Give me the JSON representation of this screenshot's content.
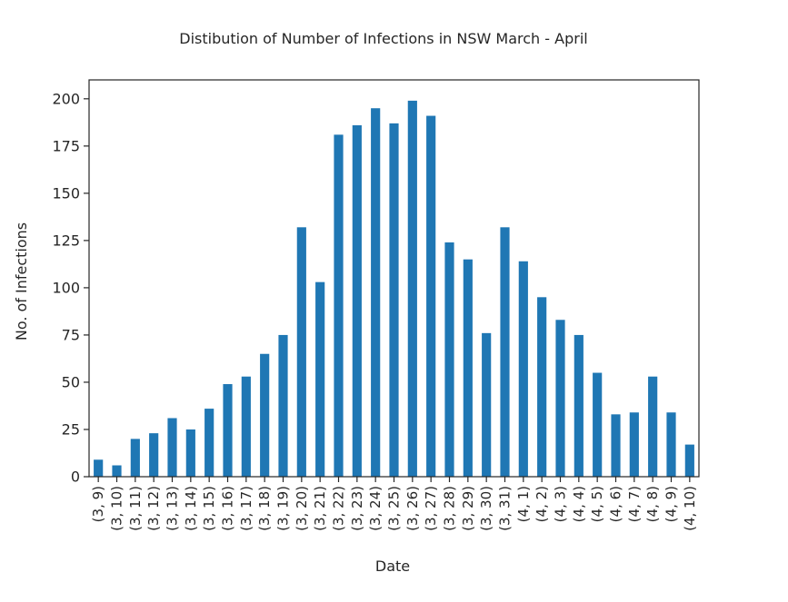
{
  "chart_data": {
    "type": "bar",
    "title": "Distibution of Number of Infections in NSW March - April",
    "xlabel": "Date",
    "ylabel": "No. of Infections",
    "ylim": [
      0,
      210
    ],
    "yticks": [
      0,
      25,
      50,
      75,
      100,
      125,
      150,
      175,
      200
    ],
    "grid": false,
    "legend": "none",
    "bar_color": "#1f77b4",
    "categories": [
      "(3, 9)",
      "(3, 10)",
      "(3, 11)",
      "(3, 12)",
      "(3, 13)",
      "(3, 14)",
      "(3, 15)",
      "(3, 16)",
      "(3, 17)",
      "(3, 18)",
      "(3, 19)",
      "(3, 20)",
      "(3, 21)",
      "(3, 22)",
      "(3, 23)",
      "(3, 24)",
      "(3, 25)",
      "(3, 26)",
      "(3, 27)",
      "(3, 28)",
      "(3, 29)",
      "(3, 30)",
      "(3, 31)",
      "(4, 1)",
      "(4, 2)",
      "(4, 3)",
      "(4, 4)",
      "(4, 5)",
      "(4, 6)",
      "(4, 7)",
      "(4, 8)",
      "(4, 9)",
      "(4, 10)"
    ],
    "values": [
      9,
      6,
      20,
      23,
      31,
      25,
      36,
      49,
      53,
      65,
      75,
      132,
      103,
      181,
      186,
      195,
      187,
      199,
      191,
      124,
      115,
      76,
      132,
      114,
      95,
      83,
      75,
      55,
      33,
      34,
      53,
      34,
      17
    ]
  }
}
